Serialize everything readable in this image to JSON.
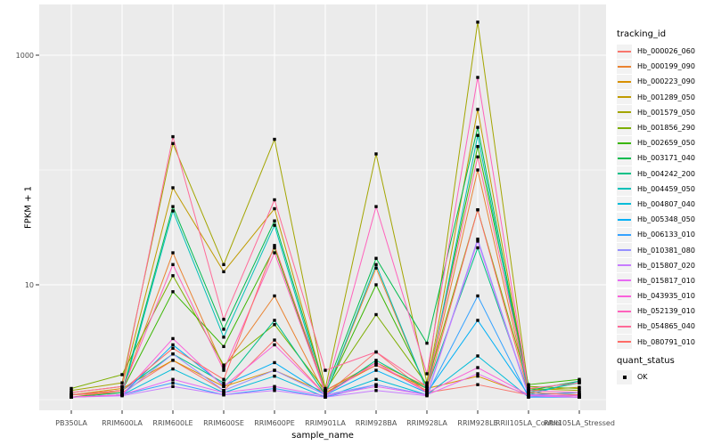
{
  "figure": {
    "background": "#FFFFFF"
  },
  "chart_data": {
    "type": "line",
    "title": "",
    "xlabel": "sample_name",
    "ylabel": "FPKM + 1",
    "y_scale": "log10",
    "y_axis_ticks": [
      {
        "label": "1000",
        "value": 1000
      },
      {
        "label": "10",
        "value": 10
      }
    ],
    "y_minor_gridlines": [
      100,
      1
    ],
    "ylim": [
      0.8,
      2800
    ],
    "grid": "on",
    "legend_position": "right",
    "legend_title": "tracking_id",
    "quant_legend": {
      "title": "quant_status",
      "items": [
        {
          "label": "OK",
          "marker": "black-square"
        }
      ]
    },
    "panel_background": "#EBEBEB",
    "grid_color": "#FFFFFF",
    "point_color": "#000000",
    "axis_text_color": "#4D4D4D",
    "categories": [
      "PB350LA",
      "RRIM600LA",
      "RRIM600LE",
      "RRIM600SE",
      "RRIM600PE",
      "RRIM901LA",
      "RRIM928BA",
      "RRIM928LA",
      "RRIM928LE",
      "RRII105LA_Control",
      "RRII105LA_Stressed"
    ],
    "series": [
      {
        "name": "Hb_000026_060",
        "color": "#F8766D",
        "values": [
          1.1,
          1.15,
          2.2,
          1.2,
          3.3,
          1.1,
          2.6,
          1.15,
          1.35,
          1.1,
          1.05
        ]
      },
      {
        "name": "Hb_000199_090",
        "color": "#EA8331",
        "values": [
          1.05,
          1.2,
          19,
          1.9,
          8.0,
          1.1,
          14,
          1.2,
          100,
          1.15,
          1.1
        ]
      },
      {
        "name": "Hb_000223_090",
        "color": "#D89000",
        "values": [
          1.1,
          1.25,
          2.2,
          1.3,
          1.8,
          1.15,
          2.0,
          1.25,
          1.6,
          1.1,
          1.05
        ]
      },
      {
        "name": "Hb_001289_050",
        "color": "#C09B00",
        "values": [
          1.15,
          1.3,
          70,
          13,
          46,
          1.2,
          2.1,
          1.3,
          337,
          1.2,
          1.28
        ]
      },
      {
        "name": "Hb_001579_050",
        "color": "#A3A500",
        "values": [
          1.2,
          1.4,
          170,
          15,
          185,
          1.25,
          138,
          1.4,
          1940,
          1.25,
          1.2
        ]
      },
      {
        "name": "Hb_001856_290",
        "color": "#7CAE00",
        "values": [
          1.25,
          1.65,
          12,
          2.0,
          4.5,
          1.2,
          5.5,
          1.35,
          45,
          1.3,
          1.25
        ]
      },
      {
        "name": "Hb_002659_050",
        "color": "#39B600",
        "values": [
          1.1,
          1.2,
          8.7,
          2.9,
          21,
          1.15,
          10,
          1.3,
          160,
          1.35,
          1.5
        ]
      },
      {
        "name": "Hb_003171_040",
        "color": "#00BB4E",
        "values": [
          1.05,
          1.15,
          48,
          4.1,
          36,
          1.2,
          17,
          3.1,
          235,
          1.2,
          1.45
        ]
      },
      {
        "name": "Hb_004242_200",
        "color": "#00C087",
        "values": [
          1.1,
          1.2,
          2.5,
          1.4,
          4.9,
          1.1,
          2.2,
          1.25,
          21,
          1.15,
          1.4
        ]
      },
      {
        "name": "Hb_004459_050",
        "color": "#00C0B8",
        "values": [
          1.05,
          1.1,
          44,
          3.5,
          33,
          1.1,
          15,
          1.2,
          200,
          1.1,
          1.45
        ]
      },
      {
        "name": "Hb_004807_040",
        "color": "#00BCD8",
        "values": [
          1.05,
          1.1,
          1.85,
          1.15,
          1.6,
          1.05,
          1.5,
          1.1,
          2.4,
          1.05,
          1.1
        ]
      },
      {
        "name": "Hb_005348_050",
        "color": "#00B0F6",
        "values": [
          1.05,
          1.1,
          3.0,
          1.33,
          2.1,
          1.1,
          1.8,
          1.15,
          4.9,
          1.1,
          1.15
        ]
      },
      {
        "name": "Hb_006133_010",
        "color": "#35A2FF",
        "values": [
          1.05,
          1.1,
          1.4,
          1.1,
          1.25,
          1.05,
          1.35,
          1.1,
          8.0,
          1.05,
          1.05
        ]
      },
      {
        "name": "Hb_010381_080",
        "color": "#9590FF",
        "values": [
          1.05,
          1.1,
          2.5,
          1.2,
          1.8,
          1.1,
          1.35,
          1.1,
          25,
          1.1,
          1.05
        ]
      },
      {
        "name": "Hb_015807_020",
        "color": "#C77CFF",
        "values": [
          1.05,
          1.08,
          1.3,
          1.1,
          1.2,
          1.05,
          1.2,
          1.08,
          24,
          1.08,
          1.05
        ]
      },
      {
        "name": "Hb_015817_010",
        "color": "#E76BF3",
        "values": [
          1.05,
          1.1,
          1.5,
          1.15,
          1.3,
          1.08,
          1.3,
          1.1,
          1.68,
          1.08,
          1.05
        ]
      },
      {
        "name": "Hb_043935_010",
        "color": "#FA62DB",
        "values": [
          1.05,
          1.1,
          3.4,
          1.3,
          3.0,
          1.1,
          2.1,
          1.15,
          1.9,
          1.1,
          1.08
        ]
      },
      {
        "name": "Hb_052139_010",
        "color": "#FF62BC",
        "values": [
          1.1,
          1.2,
          15,
          1.8,
          19,
          1.15,
          48,
          1.68,
          640,
          1.2,
          1.15
        ]
      },
      {
        "name": "Hb_054865_040",
        "color": "#FF6A98",
        "values": [
          1.15,
          1.3,
          195,
          5.0,
          55,
          1.8,
          2.6,
          1.3,
          130,
          1.25,
          1.4
        ]
      },
      {
        "name": "Hb_080791_010",
        "color": "#FF6C67",
        "values": [
          1.1,
          1.2,
          2.8,
          1.5,
          22,
          1.2,
          2.0,
          1.2,
          45,
          1.15,
          1.1
        ]
      }
    ]
  }
}
